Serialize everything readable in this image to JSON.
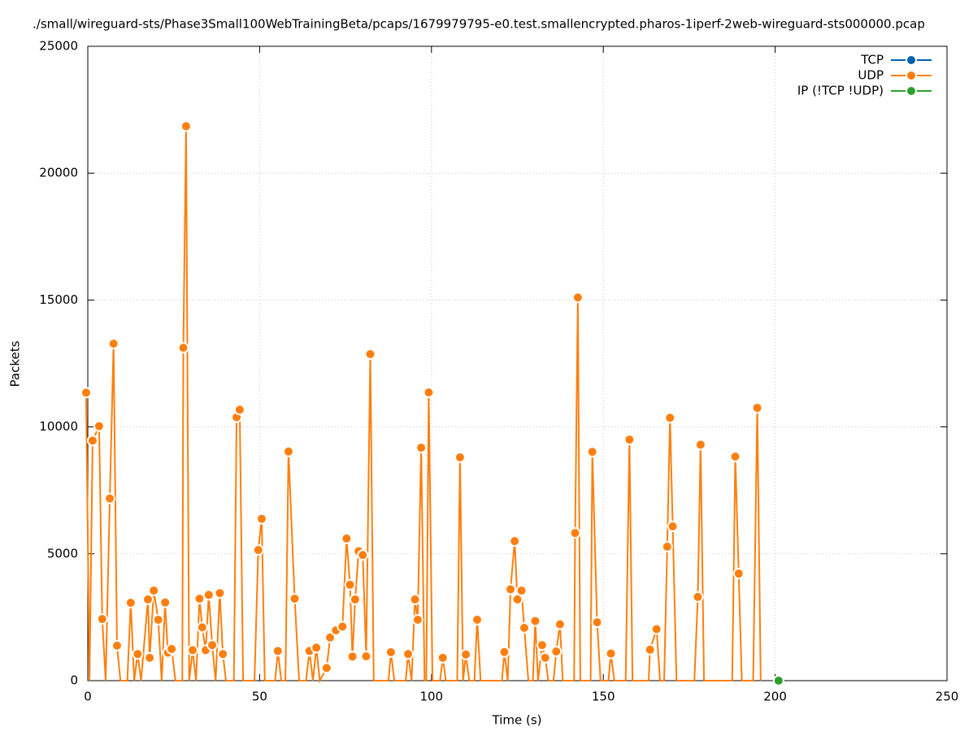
{
  "chart_data": {
    "type": "line",
    "title": "./small/wireguard-sts/Phase3Small100WebTrainingBeta/pcaps/1679979795-e0.test.smallencrypted.pharos-1iperf-2web-wireguard-sts000000.pcap",
    "xlabel": "Time (s)",
    "ylabel": "Packets",
    "xlim": [
      0,
      250
    ],
    "xticks": [
      0,
      50,
      100,
      150,
      200,
      250
    ],
    "ylim": [
      0,
      25000
    ],
    "yticks": [
      0,
      5000,
      10000,
      15000,
      20000,
      25000
    ],
    "grid": true,
    "legend": "top-right",
    "series": [
      {
        "name": "TCP",
        "color": "#0060ad",
        "x": [],
        "values": []
      },
      {
        "name": "UDP",
        "color": "#ff7f0e",
        "x": [
          -0.5,
          0.5,
          1.4,
          3.3,
          4.2,
          5.2,
          6.4,
          7.5,
          8.5,
          9.5,
          11.5,
          12.5,
          13.5,
          14.5,
          15.5,
          17.5,
          18,
          19.2,
          20.5,
          21.5,
          22.5,
          23.3,
          24.4,
          25.5,
          27.5,
          27.8,
          28.6,
          29.5,
          30.5,
          31.5,
          32.5,
          33.3,
          34.3,
          35.2,
          36.2,
          37.2,
          38.4,
          39.3,
          40.2,
          42.5,
          43.3,
          44.2,
          45.2,
          48.5,
          49.6,
          50.6,
          51.5,
          54.5,
          55.3,
          56.3,
          57.5,
          58.4,
          60.2,
          61.5,
          63.5,
          64.5,
          65.5,
          66.5,
          67.5,
          69.5,
          70.5,
          72.2,
          74.1,
          75.3,
          76.3,
          77,
          77.8,
          78.8,
          80,
          81,
          82.2,
          83.2,
          87.5,
          88.2,
          89.2,
          92.5,
          93.2,
          94.2,
          95.2,
          96,
          97,
          98,
          98.5,
          99.2,
          100.3,
          102.5,
          103.3,
          104.2,
          107.5,
          108.3,
          109.2,
          110,
          111,
          112.5,
          113.3,
          114.3,
          120.5,
          121.2,
          122.2,
          123,
          124.2,
          125,
          126.2,
          127,
          128.2,
          129.5,
          130.2,
          131,
          132.2,
          133.1,
          134,
          135.5,
          136.3,
          137.4,
          138.2,
          141.5,
          141.8,
          142.6,
          143.3,
          146.3,
          146.8,
          148.2,
          149.2,
          151.5,
          152.2,
          153.2,
          156.5,
          157.6,
          158.5,
          163.2,
          163.6,
          165.5,
          166.5,
          167.7,
          168.6,
          169.4,
          170.2,
          171.3,
          176.5,
          177.5,
          178.3,
          179.3,
          187.5,
          188.4,
          189.4,
          190.3,
          193.6,
          194.8,
          195.8
        ],
        "values": [
          11350,
          0,
          9460,
          10030,
          2430,
          0,
          7180,
          13280,
          1380,
          0,
          0,
          3070,
          0,
          1050,
          0,
          3200,
          900,
          3550,
          2400,
          0,
          3080,
          1100,
          1250,
          0,
          0,
          13120,
          21850,
          0,
          1200,
          0,
          3230,
          2100,
          1200,
          3380,
          1400,
          0,
          3450,
          1050,
          0,
          0,
          10380,
          10680,
          0,
          0,
          5150,
          6380,
          0,
          0,
          1170,
          0,
          0,
          9030,
          3230,
          0,
          0,
          1170,
          0,
          1300,
          0,
          500,
          1700,
          1980,
          2130,
          5600,
          3780,
          950,
          3200,
          5100,
          4950,
          960,
          12870,
          0,
          0,
          1120,
          0,
          0,
          1050,
          0,
          3200,
          2400,
          9180,
          0,
          0,
          11360,
          0,
          0,
          900,
          0,
          0,
          8800,
          0,
          1030,
          0,
          0,
          2400,
          0,
          0,
          1130,
          0,
          3600,
          5500,
          3200,
          3550,
          2080,
          0,
          0,
          2350,
          0,
          1400,
          900,
          0,
          0,
          1150,
          2220,
          0,
          0,
          5820,
          15100,
          0,
          0,
          9020,
          2300,
          0,
          0,
          1070,
          0,
          0,
          9500,
          0,
          0,
          1220,
          2030,
          0,
          0,
          5280,
          10360,
          6080,
          0,
          0,
          3300,
          9300,
          0,
          0,
          8830,
          4220,
          0,
          0,
          10750,
          0
        ]
      },
      {
        "name": "IP (!TCP  !UDP)",
        "color": "#2ca02c",
        "x": [
          201
        ],
        "values": [
          0
        ]
      }
    ]
  }
}
